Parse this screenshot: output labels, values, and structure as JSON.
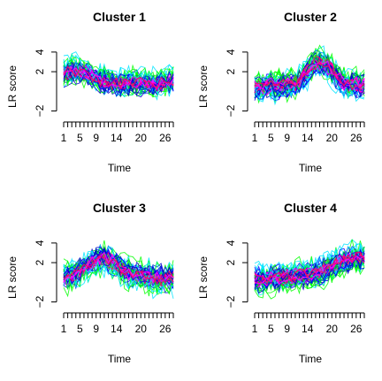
{
  "chart_data": {
    "type": "line",
    "x": [
      1,
      2,
      3,
      4,
      5,
      6,
      7,
      8,
      9,
      10,
      11,
      12,
      13,
      14,
      15,
      16,
      17,
      18,
      19,
      20,
      21,
      22,
      23,
      24,
      25,
      26,
      27,
      28
    ],
    "x_ticks": [
      1,
      5,
      9,
      14,
      20,
      26
    ],
    "y_ticks": [
      -2,
      2,
      4
    ],
    "ylim": [
      -2.4,
      4.8
    ],
    "xlabel": "Time",
    "ylabel": "LR score",
    "colors": [
      "#00ff00",
      "#00e5ff",
      "#0000ff",
      "#0000cc",
      "#ff00ff",
      "#ff0066"
    ],
    "panels": [
      {
        "title": "Cluster 1",
        "profile": [
          1.9,
          2.0,
          2.2,
          2.1,
          2.0,
          1.9,
          1.8,
          1.6,
          1.4,
          1.2,
          1.1,
          1.0,
          0.9,
          0.9,
          0.8,
          0.8,
          0.9,
          1.0,
          1.0,
          0.9,
          0.9,
          0.8,
          0.8,
          0.8,
          0.9,
          0.9,
          1.0,
          1.0
        ]
      },
      {
        "title": "Cluster 2",
        "profile": [
          0.3,
          0.4,
          0.4,
          0.4,
          0.5,
          0.5,
          0.5,
          0.6,
          0.6,
          0.7,
          0.8,
          1.0,
          1.4,
          1.9,
          2.4,
          2.8,
          2.9,
          2.8,
          2.5,
          2.0,
          1.5,
          1.1,
          0.8,
          0.7,
          0.6,
          0.6,
          0.5,
          0.5
        ]
      },
      {
        "title": "Cluster 3",
        "profile": [
          0.4,
          0.5,
          0.6,
          0.8,
          1.1,
          1.4,
          1.8,
          2.1,
          2.3,
          2.4,
          2.4,
          2.3,
          2.1,
          1.8,
          1.5,
          1.2,
          1.0,
          0.8,
          0.7,
          0.6,
          0.5,
          0.5,
          0.4,
          0.4,
          0.4,
          0.4,
          0.4,
          0.4
        ]
      },
      {
        "title": "Cluster 4",
        "profile": [
          0.3,
          0.3,
          0.4,
          0.4,
          0.4,
          0.5,
          0.5,
          0.5,
          0.6,
          0.6,
          0.6,
          0.7,
          0.7,
          0.8,
          0.9,
          1.0,
          1.1,
          1.3,
          1.5,
          1.7,
          1.9,
          2.1,
          2.2,
          2.3,
          2.4,
          2.5,
          2.5,
          2.6
        ]
      }
    ]
  }
}
